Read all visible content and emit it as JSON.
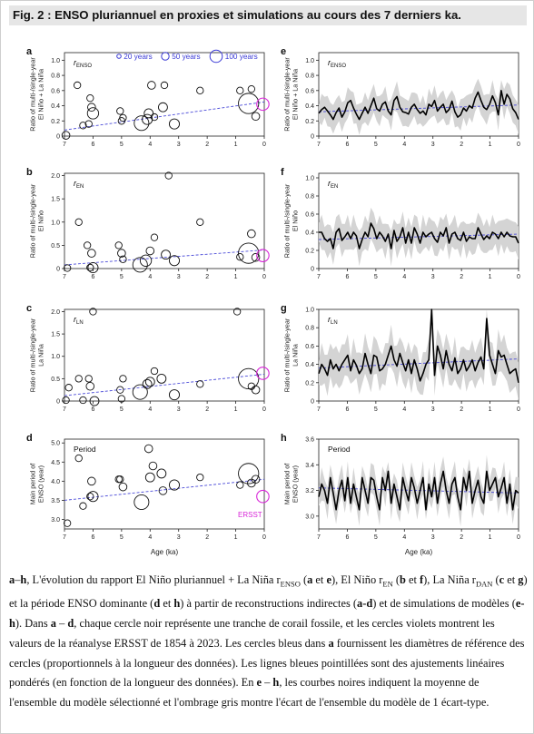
{
  "figure": {
    "title": "Fig. 2 : ENSO pluriannuel en proxies et simulations au cours des 7 derniers ka.",
    "x_axis_label": "Age (ka)",
    "x_ticks": [
      "7",
      "6",
      "5",
      "4",
      "3",
      "2",
      "1",
      "0"
    ],
    "legend": {
      "items": [
        "20 years",
        "50 years",
        "100 years"
      ],
      "color": "#3a3ad6"
    },
    "ersst_label": "ERSST",
    "colors": {
      "proxy_circle": "#111111",
      "ersst": "#d826d8",
      "fit": "#4a4ad8",
      "spread": "#d4d4d4",
      "mean": "#000000"
    }
  },
  "panels": {
    "a": {
      "letter": "a",
      "tag": "r",
      "tag_sub": "ENSO",
      "ylabel": [
        "Ratio of multi-/single-year",
        "El Niño + La Niña"
      ],
      "yticks": [
        "0",
        "0.2",
        "0.4",
        "0.6",
        "0.8",
        "1.0"
      ]
    },
    "b": {
      "letter": "b",
      "tag": "r",
      "tag_sub": "EN",
      "ylabel": [
        "Ratio of multi-/single-year",
        "El Niño"
      ],
      "yticks": [
        "0",
        "0.5",
        "1.0",
        "1.5",
        "2.0"
      ]
    },
    "c": {
      "letter": "c",
      "tag": "r",
      "tag_sub": "LN",
      "ylabel": [
        "Ratio of multi-/single-year",
        "La Niña"
      ],
      "yticks": [
        "0",
        "0.5",
        "1.0",
        "1.5",
        "2.0"
      ]
    },
    "d": {
      "letter": "d",
      "tag": "Period",
      "tag_sub": "",
      "ylabel": [
        "Main period of",
        "ENSO (year)"
      ],
      "yticks": [
        "3.0",
        "3.5",
        "4.0",
        "4.5",
        "5.0"
      ]
    },
    "e": {
      "letter": "e",
      "tag": "r",
      "tag_sub": "ENSO",
      "ylabel": [
        "Ratio of multi-/single-year",
        "El Niño + La Niña"
      ],
      "yticks": [
        "0",
        "0.2",
        "0.4",
        "0.6",
        "0.8",
        "1.0"
      ]
    },
    "f": {
      "letter": "f",
      "tag": "r",
      "tag_sub": "EN",
      "ylabel": [
        "Ratio of multi-/single-year",
        "El Niño"
      ],
      "yticks": [
        "0",
        "0.2",
        "0.4",
        "0.6",
        "0.8",
        "1.0"
      ]
    },
    "g": {
      "letter": "g",
      "tag": "r",
      "tag_sub": "LN",
      "ylabel": [
        "Ratio of multi-/single-year",
        "La Niña"
      ],
      "yticks": [
        "0",
        "0.2",
        "0.4",
        "0.6",
        "0.8",
        "1.0"
      ]
    },
    "h": {
      "letter": "h",
      "tag": "Period",
      "tag_sub": "",
      "ylabel": [
        "Main period of",
        "ENSO (year)"
      ],
      "yticks": [
        "3.0",
        "3.2",
        "3.4",
        "3.6"
      ]
    }
  },
  "chart_data": [
    {
      "panel": "a",
      "type": "scatter",
      "xlim": [
        7,
        0
      ],
      "ylim": [
        0,
        1.1
      ],
      "points": [
        [
          6.95,
          0.01,
          7
        ],
        [
          6.55,
          0.67,
          6
        ],
        [
          6.35,
          0.14,
          6
        ],
        [
          6.15,
          0.16,
          6
        ],
        [
          6.1,
          0.5,
          6
        ],
        [
          6.05,
          0.38,
          7
        ],
        [
          6.0,
          0.3,
          10
        ],
        [
          5.05,
          0.33,
          6
        ],
        [
          5.0,
          0.2,
          6
        ],
        [
          4.95,
          0.24,
          6
        ],
        [
          4.3,
          0.17,
          13
        ],
        [
          4.1,
          0.22,
          9
        ],
        [
          4.05,
          0.3,
          8
        ],
        [
          3.95,
          0.67,
          7
        ],
        [
          3.85,
          0.25,
          6
        ],
        [
          3.55,
          0.38,
          8
        ],
        [
          3.5,
          0.67,
          6
        ],
        [
          3.15,
          0.16,
          9
        ],
        [
          2.25,
          0.6,
          6
        ],
        [
          0.85,
          0.6,
          6
        ],
        [
          0.55,
          0.43,
          18
        ],
        [
          0.45,
          0.62,
          6
        ],
        [
          0.3,
          0.26,
          7
        ]
      ],
      "ersst": [
        0.05,
        0.42,
        9
      ],
      "fit": [
        [
          7,
          0.08
        ],
        [
          0,
          0.45
        ]
      ]
    },
    {
      "panel": "b",
      "type": "scatter",
      "xlim": [
        7,
        0
      ],
      "ylim": [
        0,
        2.05
      ],
      "points": [
        [
          6.9,
          0.01,
          6
        ],
        [
          6.5,
          1.0,
          6
        ],
        [
          6.2,
          0.5,
          6
        ],
        [
          6.1,
          0.02,
          6
        ],
        [
          6.05,
          0.33,
          7
        ],
        [
          6.0,
          0.02,
          9
        ],
        [
          5.1,
          0.5,
          6
        ],
        [
          5.0,
          0.33,
          7
        ],
        [
          4.95,
          0.2,
          6
        ],
        [
          4.35,
          0.08,
          13
        ],
        [
          4.15,
          0.17,
          10
        ],
        [
          4.0,
          0.38,
          7
        ],
        [
          3.85,
          0.67,
          6
        ],
        [
          3.45,
          0.3,
          8
        ],
        [
          3.35,
          2.0,
          6
        ],
        [
          3.15,
          0.17,
          9
        ],
        [
          2.25,
          1.0,
          6
        ],
        [
          0.85,
          0.25,
          6
        ],
        [
          0.55,
          0.33,
          18
        ],
        [
          0.45,
          0.75,
          7
        ],
        [
          0.3,
          0.24,
          7
        ]
      ],
      "ersst": [
        0.05,
        0.28,
        9
      ],
      "fit": [
        [
          7,
          0.08
        ],
        [
          0,
          0.4
        ]
      ]
    },
    {
      "panel": "c",
      "type": "scatter",
      "xlim": [
        7,
        0
      ],
      "ylim": [
        0,
        2.05
      ],
      "points": [
        [
          6.95,
          0.02,
          6
        ],
        [
          6.85,
          0.3,
          6
        ],
        [
          6.5,
          0.5,
          6
        ],
        [
          6.35,
          0.02,
          6
        ],
        [
          6.15,
          0.5,
          6
        ],
        [
          6.1,
          0.33,
          7
        ],
        [
          6.0,
          2.0,
          6
        ],
        [
          5.95,
          0.0,
          8
        ],
        [
          5.05,
          0.25,
          6
        ],
        [
          5.0,
          0.05,
          6
        ],
        [
          4.95,
          0.5,
          6
        ],
        [
          4.35,
          0.2,
          13
        ],
        [
          4.1,
          0.38,
          8
        ],
        [
          4.0,
          0.43,
          8
        ],
        [
          3.85,
          0.67,
          6
        ],
        [
          3.6,
          0.5,
          8
        ],
        [
          3.15,
          0.14,
          9
        ],
        [
          2.25,
          0.38,
          6
        ],
        [
          0.95,
          2.0,
          6
        ],
        [
          0.55,
          0.5,
          18
        ],
        [
          0.45,
          0.33,
          6
        ],
        [
          0.3,
          0.25,
          7
        ]
      ],
      "ersst": [
        0.05,
        0.62,
        9
      ],
      "fit": [
        [
          7,
          0.12
        ],
        [
          0,
          0.6
        ]
      ]
    },
    {
      "panel": "d",
      "type": "scatter",
      "xlim": [
        7,
        0
      ],
      "ylim": [
        2.75,
        5.1
      ],
      "points": [
        [
          6.9,
          2.9,
          6
        ],
        [
          6.5,
          4.6,
          6
        ],
        [
          6.35,
          3.35,
          6
        ],
        [
          6.1,
          3.6,
          6
        ],
        [
          6.05,
          4.0,
          7
        ],
        [
          6.0,
          3.6,
          9
        ],
        [
          5.1,
          4.05,
          6
        ],
        [
          5.05,
          4.05,
          6
        ],
        [
          4.95,
          3.85,
          7
        ],
        [
          4.3,
          3.45,
          13
        ],
        [
          4.05,
          4.85,
          7
        ],
        [
          4.0,
          4.1,
          8
        ],
        [
          3.9,
          4.4,
          7
        ],
        [
          3.6,
          4.2,
          8
        ],
        [
          3.55,
          3.75,
          7
        ],
        [
          3.15,
          3.9,
          9
        ],
        [
          2.25,
          4.1,
          6
        ],
        [
          0.85,
          3.9,
          6
        ],
        [
          0.55,
          4.2,
          18
        ],
        [
          0.45,
          3.95,
          7
        ],
        [
          0.3,
          4.05,
          7
        ]
      ],
      "ersst": [
        0.05,
        3.6,
        9
      ],
      "fit": [
        [
          7,
          3.5
        ],
        [
          0,
          4.05
        ]
      ]
    },
    {
      "panel": "e",
      "type": "line",
      "xlim": [
        7,
        0
      ],
      "ylim": [
        0,
        1.1
      ],
      "mean": [
        0.3,
        0.35,
        0.38,
        0.33,
        0.28,
        0.22,
        0.31,
        0.37,
        0.25,
        0.32,
        0.44,
        0.47,
        0.37,
        0.29,
        0.22,
        0.3,
        0.38,
        0.3,
        0.4,
        0.5,
        0.36,
        0.33,
        0.42,
        0.45,
        0.33,
        0.28,
        0.47,
        0.52,
        0.38,
        0.32,
        0.31,
        0.29,
        0.38,
        0.42,
        0.35,
        0.3,
        0.33,
        0.28,
        0.42,
        0.39,
        0.47,
        0.33,
        0.38,
        0.42,
        0.31,
        0.35,
        0.46,
        0.32,
        0.25,
        0.28,
        0.37,
        0.33,
        0.4,
        0.37,
        0.5,
        0.58,
        0.47,
        0.38,
        0.35,
        0.42,
        0.53,
        0.44,
        0.28,
        0.6,
        0.42,
        0.55,
        0.49,
        0.36,
        0.31,
        0.22
      ],
      "spread": 0.16,
      "fit": [
        [
          7,
          0.32
        ],
        [
          0,
          0.41
        ]
      ]
    },
    {
      "panel": "f",
      "type": "line",
      "xlim": [
        7,
        0
      ],
      "ylim": [
        0,
        1.05
      ],
      "mean": [
        0.4,
        0.4,
        0.33,
        0.3,
        0.33,
        0.22,
        0.4,
        0.44,
        0.31,
        0.35,
        0.4,
        0.33,
        0.4,
        0.36,
        0.22,
        0.32,
        0.4,
        0.35,
        0.5,
        0.44,
        0.33,
        0.4,
        0.36,
        0.3,
        0.38,
        0.22,
        0.42,
        0.3,
        0.35,
        0.45,
        0.28,
        0.4,
        0.28,
        0.45,
        0.38,
        0.28,
        0.4,
        0.35,
        0.38,
        0.4,
        0.33,
        0.29,
        0.4,
        0.36,
        0.45,
        0.28,
        0.38,
        0.4,
        0.33,
        0.31,
        0.4,
        0.3,
        0.35,
        0.33,
        0.33,
        0.45,
        0.38,
        0.32,
        0.36,
        0.33,
        0.4,
        0.38,
        0.33,
        0.4,
        0.35,
        0.4,
        0.36,
        0.35,
        0.35,
        0.28
      ],
      "spread": 0.15,
      "fit": [
        [
          7,
          0.32
        ],
        [
          0,
          0.38
        ]
      ]
    },
    {
      "panel": "g",
      "type": "line",
      "xlim": [
        7,
        0
      ],
      "ylim": [
        0,
        1.0
      ],
      "mean": [
        0.3,
        0.4,
        0.35,
        0.28,
        0.45,
        0.35,
        0.4,
        0.33,
        0.4,
        0.45,
        0.5,
        0.33,
        0.45,
        0.39,
        0.3,
        0.35,
        0.52,
        0.4,
        0.3,
        0.5,
        0.48,
        0.33,
        0.35,
        0.4,
        0.5,
        0.6,
        0.45,
        0.38,
        0.52,
        0.42,
        0.33,
        0.45,
        0.3,
        0.45,
        0.35,
        0.22,
        0.3,
        0.4,
        0.45,
        1.0,
        0.28,
        0.6,
        0.5,
        0.35,
        0.55,
        0.4,
        0.33,
        0.47,
        0.3,
        0.35,
        0.45,
        0.33,
        0.38,
        0.45,
        0.33,
        0.42,
        0.48,
        0.35,
        0.9,
        0.5,
        0.4,
        0.3,
        0.55,
        0.48,
        0.5,
        0.4,
        0.3,
        0.33,
        0.35,
        0.2
      ],
      "spread": 0.18,
      "fit": [
        [
          7,
          0.36
        ],
        [
          0,
          0.46
        ]
      ]
    },
    {
      "panel": "h",
      "type": "line",
      "xlim": [
        7,
        0
      ],
      "ylim": [
        2.9,
        3.6
      ],
      "mean": [
        3.15,
        3.25,
        3.2,
        3.1,
        3.3,
        3.18,
        3.05,
        3.2,
        3.28,
        3.12,
        3.3,
        3.1,
        3.25,
        3.15,
        3.05,
        3.3,
        3.2,
        3.1,
        3.3,
        3.28,
        3.15,
        3.05,
        3.3,
        3.2,
        3.35,
        3.1,
        3.25,
        3.15,
        3.05,
        3.3,
        3.2,
        3.12,
        3.3,
        3.22,
        3.1,
        3.2,
        3.3,
        3.05,
        3.25,
        3.15,
        3.3,
        3.1,
        3.25,
        3.35,
        3.2,
        3.1,
        3.25,
        3.3,
        3.15,
        3.05,
        3.3,
        3.2,
        3.35,
        3.1,
        3.2,
        3.28,
        3.15,
        3.1,
        3.35,
        3.2,
        3.25,
        3.3,
        3.15,
        3.22,
        3.3,
        3.1,
        3.25,
        3.05,
        3.2,
        3.18
      ],
      "spread": 0.1,
      "fit": [
        [
          7,
          3.22
        ],
        [
          0,
          3.18
        ]
      ]
    }
  ],
  "caption": {
    "segments": [
      {
        "t": "a",
        "b": true
      },
      {
        "t": "–"
      },
      {
        "t": "h",
        "b": true
      },
      {
        "t": ", L'évolution du rapport El Niño pluriannuel + La Niña r"
      },
      {
        "t": "ENSO",
        "sub": true
      },
      {
        "t": " ("
      },
      {
        "t": "a",
        "b": true
      },
      {
        "t": " et "
      },
      {
        "t": "e",
        "b": true
      },
      {
        "t": "), El Niño r"
      },
      {
        "t": "EN",
        "sub": true
      },
      {
        "t": " ("
      },
      {
        "t": "b",
        "b": true
      },
      {
        "t": " et "
      },
      {
        "t": "f",
        "b": true
      },
      {
        "t": "), La Niña r"
      },
      {
        "t": "DAN",
        "sub": true
      },
      {
        "t": " ("
      },
      {
        "t": "c",
        "b": true
      },
      {
        "t": " et "
      },
      {
        "t": "g",
        "b": true
      },
      {
        "t": ") et la période ENSO dominante ("
      },
      {
        "t": "d",
        "b": true
      },
      {
        "t": " et "
      },
      {
        "t": "h",
        "b": true
      },
      {
        "t": ") à partir de reconstructions indirectes ("
      },
      {
        "t": "a-d",
        "b": true
      },
      {
        "t": ") et de simulations de modèles ("
      },
      {
        "t": "e-h",
        "b": true
      },
      {
        "t": "). Dans "
      },
      {
        "t": "a",
        "b": true
      },
      {
        "t": " – "
      },
      {
        "t": "d",
        "b": true
      },
      {
        "t": ", chaque cercle noir représente une tranche de corail fossile, et les cercles violets montrent les valeurs de la réanalyse ERSST de 1854 à 2023. Les cercles bleus dans "
      },
      {
        "t": "a",
        "b": true
      },
      {
        "t": " fournissent les diamètres de référence des cercles (proportionnels à la longueur des données). Les lignes bleues pointillées sont des ajustements linéaires pondérés (en fonction de la longueur des données). En "
      },
      {
        "t": "e",
        "b": true
      },
      {
        "t": " – "
      },
      {
        "t": "h",
        "b": true
      },
      {
        "t": ", les courbes noires indiquent la moyenne de l'ensemble du modèle sélectionné et l'ombrage gris montre l'écart de l'ensemble du modèle de 1 écart-type."
      }
    ]
  }
}
